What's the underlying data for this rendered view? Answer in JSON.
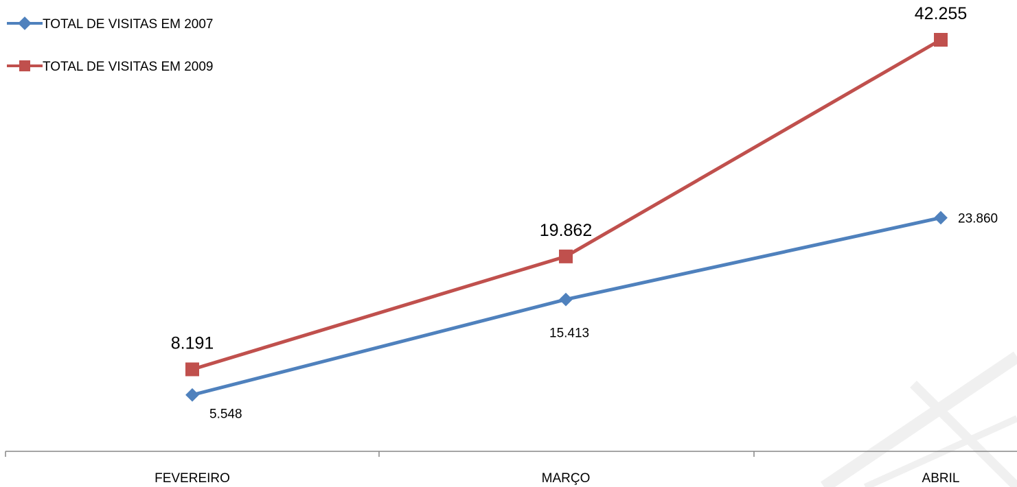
{
  "chart_data": {
    "type": "line",
    "categories": [
      "FEVEREIRO",
      "MARÇO",
      "ABRIL"
    ],
    "series": [
      {
        "name": "TOTAL DE VISITAS EM 2007",
        "values": [
          5548,
          15413,
          23860
        ],
        "labels": [
          "5.548",
          "15.413",
          "23.860"
        ],
        "color": "#4F81BD",
        "marker": "diamond"
      },
      {
        "name": "TOTAL DE VISITAS EM 2009",
        "values": [
          8191,
          19862,
          42255
        ],
        "labels": [
          "8.191",
          "19.862",
          "42.255"
        ],
        "color": "#C0504D",
        "marker": "square"
      }
    ],
    "ylim": [
      0,
      45000
    ],
    "grid": false,
    "legend_position": "top-left"
  }
}
